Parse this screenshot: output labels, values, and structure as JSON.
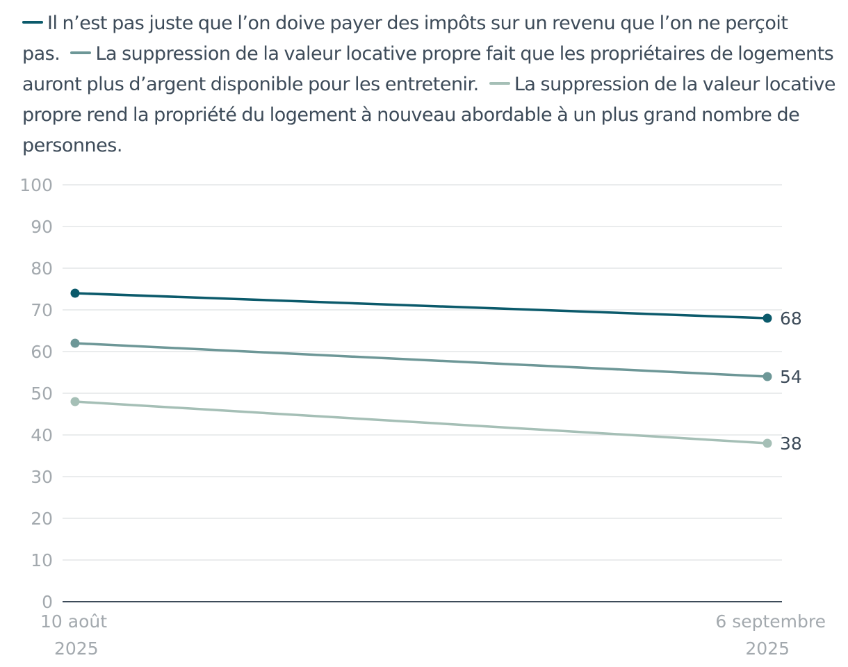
{
  "chart_data": {
    "type": "line",
    "title": "",
    "xlabel": "",
    "ylabel": "",
    "ylim": [
      0,
      100
    ],
    "yticks": [
      0,
      10,
      20,
      30,
      40,
      50,
      60,
      70,
      80,
      90,
      100
    ],
    "grid": true,
    "legend_position": "top",
    "categories": [
      {
        "line1": "10 août",
        "line2": "2025"
      },
      {
        "line1": "6 septembre",
        "line2": "2025"
      }
    ],
    "series": [
      {
        "name": "Il n’est pas juste que l’on doive payer des impôts sur un revenu que l’on ne perçoit pas.",
        "color": "#0b5a6b",
        "values": [
          74,
          68
        ],
        "end_label": "68"
      },
      {
        "name": "La suppression de la valeur locative propre fait que les propriétaires de logements auront plus d’argent disponible pour les entretenir.",
        "color": "#6d9797",
        "values": [
          62,
          54
        ],
        "end_label": "54"
      },
      {
        "name": "La suppression de la valeur locative propre rend la propriété du logement à nouveau abordable à un plus grand nombre de personnes.",
        "color": "#a5bfb6",
        "values": [
          48,
          38
        ],
        "end_label": "38"
      }
    ]
  }
}
